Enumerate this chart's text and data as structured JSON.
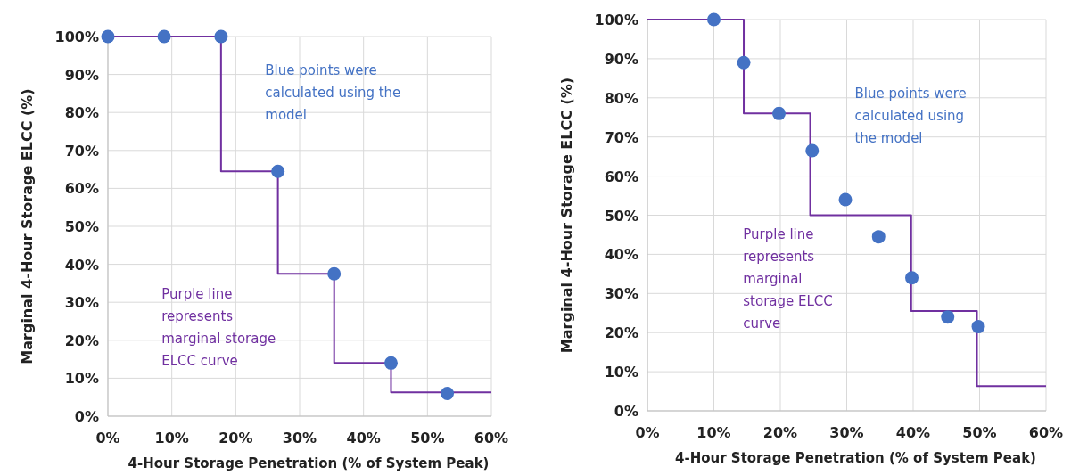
{
  "chart_data": [
    {
      "type": "scatter",
      "xlabel": "4-Hour Storage Penetration (% of System Peak)",
      "ylabel": "Marginal 4-Hour Storage ELCC (%)",
      "series": [
        {
          "color": "#4472c4",
          "marker": "circle",
          "x": [
            0,
            8.8,
            17.7,
            26.6,
            35.4,
            44.3,
            53.1
          ],
          "values": [
            100,
            100,
            100,
            64.5,
            37.5,
            14,
            6
          ]
        },
        {
          "type": "step",
          "color": "#7030a0",
          "marker": "none",
          "x": [
            0,
            17.7,
            26.6,
            35.4,
            44.3,
            60
          ],
          "values": [
            100,
            64.5,
            37.5,
            14,
            6.3,
            6.3
          ]
        }
      ],
      "xlim": [
        0,
        60
      ],
      "xticks": [
        {
          "value": 0,
          "label": "0%"
        },
        {
          "value": 10,
          "label": "10%"
        },
        {
          "value": 20,
          "label": "20%"
        },
        {
          "value": 30,
          "label": "30%"
        },
        {
          "value": 40,
          "label": "40%"
        },
        {
          "value": 50,
          "label": "50%"
        },
        {
          "value": 60,
          "label": "60%"
        }
      ],
      "ylim": [
        0,
        100
      ],
      "yticks": [
        {
          "value": 0,
          "label": "0%"
        },
        {
          "value": 10,
          "label": "10%"
        },
        {
          "value": 20,
          "label": "20%"
        },
        {
          "value": 30,
          "label": "30%"
        },
        {
          "value": 40,
          "label": "40%"
        },
        {
          "value": 50,
          "label": "50%"
        },
        {
          "value": 60,
          "label": "60%"
        },
        {
          "value": 70,
          "label": "70%"
        },
        {
          "value": 80,
          "label": "80%"
        },
        {
          "value": 90,
          "label": "90%"
        },
        {
          "value": 100,
          "label": "100%"
        }
      ],
      "grid": true,
      "annotations": [
        "Blue points were calculated using the model",
        "Purple line represents marginal storage ELCC curve"
      ]
    },
    {
      "type": "scatter",
      "xlabel": "4-Hour Storage Penetration (% of System Peak)",
      "ylabel": "Marginal 4-Hour Storage ELCC (%)",
      "series": [
        {
          "color": "#4472c4",
          "marker": "circle",
          "x": [
            10,
            14.5,
            19.8,
            24.8,
            29.8,
            34.8,
            39.8,
            45.2,
            49.8
          ],
          "values": [
            100,
            89,
            76,
            66.5,
            54,
            44.5,
            34,
            24,
            21.5
          ]
        },
        {
          "type": "step",
          "color": "#7030a0",
          "marker": "none",
          "x": [
            0,
            14.5,
            24.5,
            39.7,
            49.6,
            60
          ],
          "values": [
            100,
            76,
            50,
            25.5,
            6.3,
            6.3
          ]
        }
      ],
      "xlim": [
        0,
        60
      ],
      "xticks": [
        {
          "value": 0,
          "label": "0%"
        },
        {
          "value": 10,
          "label": "10%"
        },
        {
          "value": 20,
          "label": "20%"
        },
        {
          "value": 30,
          "label": "30%"
        },
        {
          "value": 40,
          "label": "40%"
        },
        {
          "value": 50,
          "label": "50%"
        },
        {
          "value": 60,
          "label": "60%"
        }
      ],
      "ylim": [
        0,
        100
      ],
      "yticks": [
        {
          "value": 0,
          "label": "0%"
        },
        {
          "value": 10,
          "label": "10%"
        },
        {
          "value": 20,
          "label": "20%"
        },
        {
          "value": 30,
          "label": "30%"
        },
        {
          "value": 40,
          "label": "40%"
        },
        {
          "value": 50,
          "label": "50%"
        },
        {
          "value": 60,
          "label": "60%"
        },
        {
          "value": 70,
          "label": "70%"
        },
        {
          "value": 80,
          "label": "80%"
        },
        {
          "value": 90,
          "label": "90%"
        },
        {
          "value": 100,
          "label": "100%"
        }
      ],
      "grid": true,
      "annotations": [
        "Blue points were calculated using the model",
        "Purple line represents marginal storage ELCC curve"
      ]
    }
  ]
}
